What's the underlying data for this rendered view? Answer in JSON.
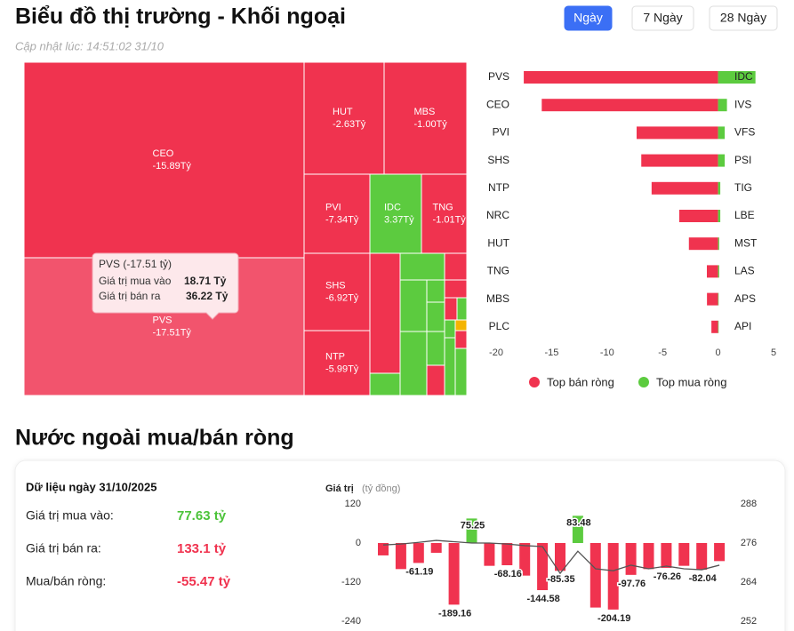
{
  "header": {
    "title": "Biểu đồ thị trường - Khối ngoại",
    "updated": "Cập nhật lúc: 14:51:02 31/10",
    "tabs": [
      "Ngày",
      "7 Ngày",
      "28 Ngày"
    ],
    "active_tab": 0
  },
  "chart_data": [
    {
      "type": "treemap",
      "categories": [
        "CEO",
        "PVS",
        "HUT",
        "MBS",
        "PVI",
        "IDC",
        "TNG",
        "SHS",
        "NTP"
      ],
      "values": [
        -15.89,
        -17.51,
        -2.63,
        -1.0,
        -7.34,
        3.37,
        -1.01,
        -6.92,
        -5.99
      ],
      "value_labels": [
        "-15.89Tỷ",
        "-17.51Tỷ",
        "-2.63Tỷ",
        "-1.00Tỷ",
        "-7.34Tỷ",
        "3.37Tỷ",
        "-1.01Tỷ",
        "-6.92Tỷ",
        "-5.99Tỷ"
      ],
      "negative_color": "#f0334f",
      "positive_color": "#5ccb3f",
      "highlight_color": "#f2546d",
      "highlight_index": 1,
      "tooltip": {
        "title": "PVS (-17.51 tỷ)",
        "rows": [
          {
            "label": "Giá trị mua vào",
            "value": "18.71 Tỷ"
          },
          {
            "label": "Giá trị bán ra",
            "value": "36.22 Tỷ"
          }
        ]
      }
    },
    {
      "type": "diverging_bar",
      "series": [
        {
          "name": "Top bán ròng",
          "color": "#f0334f",
          "categories": [
            "PVS",
            "CEO",
            "PVI",
            "SHS",
            "NTP",
            "NRC",
            "HUT",
            "TNG",
            "MBS",
            "PLC"
          ],
          "values": [
            -17.51,
            -15.89,
            -7.34,
            -6.92,
            -5.99,
            -3.5,
            -2.63,
            -1.01,
            -1.0,
            -0.6
          ]
        },
        {
          "name": "Top mua ròng",
          "color": "#5ccb3f",
          "categories": [
            "IDC",
            "IVS",
            "VFS",
            "PSI",
            "TIG",
            "LBE",
            "MST",
            "LAS",
            "APS",
            "API"
          ],
          "values": [
            3.37,
            0.8,
            0.6,
            0.6,
            0.2,
            0.2,
            0.1,
            0.1,
            0.05,
            0.05
          ]
        }
      ],
      "xlim": [
        -20,
        5
      ],
      "xticks": [
        -20,
        -15,
        -10,
        -5,
        0,
        5
      ],
      "legend": "bottom"
    },
    {
      "type": "bar_line",
      "title": "Nước ngoài mua/bán ròng",
      "y_label": "Giá trị",
      "y_unit": "(tỷ đồng)",
      "series": [
        {
          "type": "bar",
          "positive_color": "#5ccb3f",
          "negative_color": "#f0334f",
          "values": [
            -38,
            -80,
            -61.19,
            -30,
            -189.16,
            75.25,
            -70,
            -68.16,
            -100,
            -144.58,
            -85.35,
            83.48,
            -198,
            -204.19,
            -97.76,
            -80,
            -76.26,
            -70,
            -82.04,
            -55.47
          ],
          "value_labels": [
            null,
            null,
            "-61.19",
            null,
            "-189.16",
            "75.25",
            null,
            "-68.16",
            null,
            "-144.58",
            "-85.35",
            "83.48",
            null,
            "-204.19",
            "-97.76",
            null,
            "-76.26",
            null,
            "-82.04",
            null
          ]
        },
        {
          "type": "line",
          "axis": "y2",
          "color": "#555555",
          "values": [
            275.4,
            275.7,
            276.2,
            276.8,
            276.4,
            276.0,
            276.0,
            275.7,
            275.2,
            274.9,
            266.7,
            273.5,
            268.1,
            267.5,
            269.2,
            268.1,
            268.9,
            268.1,
            267.8,
            269.2
          ]
        }
      ],
      "ylim": [
        -240,
        120
      ],
      "yticks": [
        120,
        0,
        -120,
        -240
      ],
      "y2lim": [
        252,
        288
      ],
      "y2ticks": [
        288,
        276,
        264,
        252
      ]
    }
  ],
  "summary": {
    "title": "Dữ liệu ngày 31/10/2025",
    "rows": [
      {
        "label": "Giá trị mua vào:",
        "value": "77.63 tỷ"
      },
      {
        "label": "Giá trị bán ra:",
        "value": "133.1 tỷ"
      },
      {
        "label": "Mua/bán ròng:",
        "value": "-55.47 tỷ"
      }
    ]
  }
}
